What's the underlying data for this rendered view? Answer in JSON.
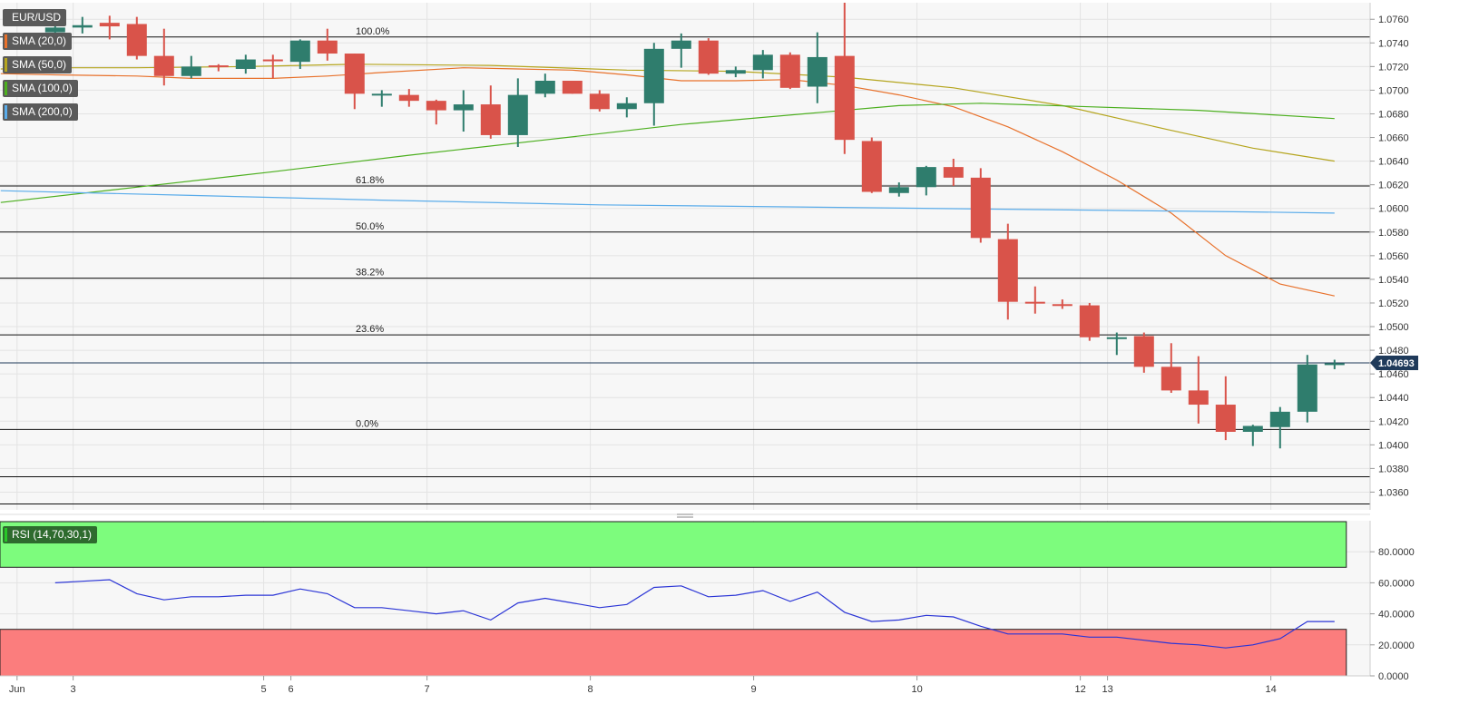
{
  "legend": {
    "symbol": "EUR/USD",
    "indicators": [
      {
        "label": "SMA (20,0)",
        "color": "#e8712b"
      },
      {
        "label": "SMA (50,0)",
        "color": "#b5a51e"
      },
      {
        "label": "SMA (100,0)",
        "color": "#4caf1f"
      },
      {
        "label": "SMA (200,0)",
        "color": "#5aacea"
      }
    ],
    "rsi": {
      "label": "RSI (14,70,30,1)",
      "color": "#27c727"
    }
  },
  "colors": {
    "up": "#2f7d6d",
    "down": "#d9534a",
    "price_line": "#1f3a5a",
    "rsi_line": "#2b35d6",
    "overbought_zone": "#7dfc7d",
    "oversold_zone": "#fb7d7d"
  },
  "chart_data": {
    "type": "candlestick",
    "price_axis": {
      "min": 1.0345,
      "max": 1.0774,
      "ticks": [
        "1.0760",
        "1.0740",
        "1.0720",
        "1.0700",
        "1.0680",
        "1.0660",
        "1.0640",
        "1.0620",
        "1.0600",
        "1.0580",
        "1.0560",
        "1.0540",
        "1.0520",
        "1.0500",
        "1.0480",
        "1.0460",
        "1.0440",
        "1.0420",
        "1.0400",
        "1.0380",
        "1.0360"
      ]
    },
    "current_price": {
      "label": "1.04693",
      "value": 1.04693
    },
    "fibonacci": [
      {
        "label": "100.0%",
        "value": 1.0745
      },
      {
        "label": "61.8%",
        "value": 1.0619
      },
      {
        "label": "50.0%",
        "value": 1.058
      },
      {
        "label": "38.2%",
        "value": 1.0541
      },
      {
        "label": "23.6%",
        "value": 1.0493
      },
      {
        "label": "0.0%",
        "value": 1.0413
      }
    ],
    "extra_levels": [
      1.0373,
      1.035
    ],
    "x_labels": [
      {
        "label": "Jun",
        "index": -1.4
      },
      {
        "label": "3",
        "index": 0.66
      },
      {
        "label": "5",
        "index": 7.66
      },
      {
        "label": "6",
        "index": 8.66
      },
      {
        "label": "7",
        "index": 13.66
      },
      {
        "label": "8",
        "index": 19.66
      },
      {
        "label": "9",
        "index": 25.66
      },
      {
        "label": "10",
        "index": 31.66
      },
      {
        "label": "12",
        "index": 37.66
      },
      {
        "label": "13",
        "index": 38.66
      },
      {
        "label": "14",
        "index": 44.66
      }
    ],
    "candles": [
      {
        "o": 1.0749,
        "h": 1.0757,
        "l": 1.0739,
        "c": 1.0753
      },
      {
        "o": 1.0753,
        "h": 1.0762,
        "l": 1.0748,
        "c": 1.0755
      },
      {
        "o": 1.0757,
        "h": 1.0763,
        "l": 1.0743,
        "c": 1.0754
      },
      {
        "o": 1.0756,
        "h": 1.0762,
        "l": 1.0726,
        "c": 1.0729
      },
      {
        "o": 1.0729,
        "h": 1.0752,
        "l": 1.0704,
        "c": 1.0712
      },
      {
        "o": 1.0712,
        "h": 1.0729,
        "l": 1.071,
        "c": 1.072
      },
      {
        "o": 1.0721,
        "h": 1.0722,
        "l": 1.0716,
        "c": 1.072
      },
      {
        "o": 1.0718,
        "h": 1.073,
        "l": 1.0714,
        "c": 1.0726
      },
      {
        "o": 1.0726,
        "h": 1.073,
        "l": 1.071,
        "c": 1.0725
      },
      {
        "o": 1.0724,
        "h": 1.0743,
        "l": 1.0718,
        "c": 1.0742
      },
      {
        "o": 1.0742,
        "h": 1.0752,
        "l": 1.0725,
        "c": 1.0731
      },
      {
        "o": 1.0731,
        "h": 1.0731,
        "l": 1.0684,
        "c": 1.0697
      },
      {
        "o": 1.0697,
        "h": 1.07,
        "l": 1.0686,
        "c": 1.0697
      },
      {
        "o": 1.0696,
        "h": 1.0701,
        "l": 1.0686,
        "c": 1.0691
      },
      {
        "o": 1.0691,
        "h": 1.0692,
        "l": 1.0671,
        "c": 1.0683
      },
      {
        "o": 1.0683,
        "h": 1.07,
        "l": 1.0665,
        "c": 1.0688
      },
      {
        "o": 1.0688,
        "h": 1.0704,
        "l": 1.0659,
        "c": 1.0662
      },
      {
        "o": 1.0662,
        "h": 1.071,
        "l": 1.0652,
        "c": 1.0696
      },
      {
        "o": 1.0697,
        "h": 1.0714,
        "l": 1.0694,
        "c": 1.0708
      },
      {
        "o": 1.0708,
        "h": 1.0708,
        "l": 1.0697,
        "c": 1.0697
      },
      {
        "o": 1.0697,
        "h": 1.07,
        "l": 1.0682,
        "c": 1.0684
      },
      {
        "o": 1.0684,
        "h": 1.0694,
        "l": 1.0677,
        "c": 1.0689
      },
      {
        "o": 1.0689,
        "h": 1.074,
        "l": 1.067,
        "c": 1.0735
      },
      {
        "o": 1.0735,
        "h": 1.0748,
        "l": 1.0719,
        "c": 1.0742
      },
      {
        "o": 1.0742,
        "h": 1.0744,
        "l": 1.0713,
        "c": 1.0714
      },
      {
        "o": 1.0714,
        "h": 1.072,
        "l": 1.0711,
        "c": 1.0717
      },
      {
        "o": 1.0717,
        "h": 1.0734,
        "l": 1.071,
        "c": 1.073
      },
      {
        "o": 1.073,
        "h": 1.0732,
        "l": 1.0701,
        "c": 1.0702
      },
      {
        "o": 1.0703,
        "h": 1.0749,
        "l": 1.0689,
        "c": 1.0728
      },
      {
        "o": 1.0729,
        "h": 1.0774,
        "l": 1.0646,
        "c": 1.0658
      },
      {
        "o": 1.0657,
        "h": 1.066,
        "l": 1.0613,
        "c": 1.0614
      },
      {
        "o": 1.0613,
        "h": 1.0622,
        "l": 1.061,
        "c": 1.0618
      },
      {
        "o": 1.0618,
        "h": 1.0636,
        "l": 1.0611,
        "c": 1.0635
      },
      {
        "o": 1.0635,
        "h": 1.0642,
        "l": 1.0619,
        "c": 1.0626
      },
      {
        "o": 1.0626,
        "h": 1.0634,
        "l": 1.0571,
        "c": 1.0575
      },
      {
        "o": 1.0574,
        "h": 1.0587,
        "l": 1.0506,
        "c": 1.0521
      },
      {
        "o": 1.0521,
        "h": 1.0534,
        "l": 1.0511,
        "c": 1.052
      },
      {
        "o": 1.0519,
        "h": 1.0523,
        "l": 1.0515,
        "c": 1.0518
      },
      {
        "o": 1.0518,
        "h": 1.052,
        "l": 1.0488,
        "c": 1.0491
      },
      {
        "o": 1.0491,
        "h": 1.0495,
        "l": 1.0476,
        "c": 1.0491
      },
      {
        "o": 1.0492,
        "h": 1.0495,
        "l": 1.0461,
        "c": 1.0466
      },
      {
        "o": 1.0466,
        "h": 1.0486,
        "l": 1.0444,
        "c": 1.0446
      },
      {
        "o": 1.0446,
        "h": 1.0475,
        "l": 1.0418,
        "c": 1.0434
      },
      {
        "o": 1.0434,
        "h": 1.0458,
        "l": 1.0404,
        "c": 1.0411
      },
      {
        "o": 1.0411,
        "h": 1.0417,
        "l": 1.0399,
        "c": 1.0416
      },
      {
        "o": 1.0415,
        "h": 1.0432,
        "l": 1.0397,
        "c": 1.0428
      },
      {
        "o": 1.0428,
        "h": 1.0476,
        "l": 1.0419,
        "c": 1.0468
      },
      {
        "o": 1.0468,
        "h": 1.0472,
        "l": 1.0464,
        "c": 1.0469
      }
    ],
    "sma_series": [
      {
        "label": "SMA (20,0)",
        "points": [
          [
            -2,
            1.0714
          ],
          [
            0,
            1.0713
          ],
          [
            3,
            1.0712
          ],
          [
            5,
            1.071
          ],
          [
            8,
            1.071
          ],
          [
            10,
            1.0712
          ],
          [
            12,
            1.0715
          ],
          [
            15,
            1.0719
          ],
          [
            17,
            1.0718
          ],
          [
            19,
            1.0717
          ],
          [
            21,
            1.0713
          ],
          [
            23,
            1.0708
          ],
          [
            25,
            1.0708
          ],
          [
            27,
            1.0709
          ],
          [
            29,
            1.0704
          ],
          [
            31,
            1.0696
          ],
          [
            33,
            1.0686
          ],
          [
            35,
            1.0669
          ],
          [
            37,
            1.0648
          ],
          [
            39,
            1.0624
          ],
          [
            41,
            1.0596
          ],
          [
            43,
            1.056
          ],
          [
            45,
            1.0536
          ],
          [
            47,
            1.0526
          ]
        ]
      },
      {
        "label": "SMA (50,0)",
        "points": [
          [
            -2,
            1.0718
          ],
          [
            0,
            1.0719
          ],
          [
            3,
            1.0719
          ],
          [
            7,
            1.072
          ],
          [
            11,
            1.0722
          ],
          [
            16,
            1.0721
          ],
          [
            21,
            1.0717
          ],
          [
            25,
            1.0716
          ],
          [
            29,
            1.0711
          ],
          [
            33,
            1.0702
          ],
          [
            37,
            1.0687
          ],
          [
            41,
            1.0666
          ],
          [
            44,
            1.0651
          ],
          [
            47,
            1.064
          ]
        ]
      },
      {
        "label": "SMA (100,0)",
        "points": [
          [
            -2,
            1.0605
          ],
          [
            3,
            1.0618
          ],
          [
            8,
            1.0631
          ],
          [
            13,
            1.0645
          ],
          [
            18,
            1.0658
          ],
          [
            23,
            1.0671
          ],
          [
            28,
            1.0681
          ],
          [
            31,
            1.0687
          ],
          [
            34,
            1.0689
          ],
          [
            38,
            1.0686
          ],
          [
            42,
            1.0683
          ],
          [
            47,
            1.0676
          ]
        ]
      },
      {
        "label": "SMA (200,0)",
        "points": [
          [
            -2,
            1.0615
          ],
          [
            5,
            1.0611
          ],
          [
            12,
            1.0607
          ],
          [
            20,
            1.0603
          ],
          [
            28,
            1.0601
          ],
          [
            36,
            1.0599
          ],
          [
            44,
            1.0597
          ],
          [
            47,
            1.0596
          ]
        ]
      }
    ],
    "rsi": {
      "axis": {
        "min": 0,
        "max": 100,
        "ticks": [
          "80.0000",
          "60.0000",
          "40.0000",
          "20.0000",
          "0.0000"
        ]
      },
      "overbought": 70,
      "oversold": 30,
      "values": [
        60,
        61,
        62,
        53,
        49,
        51,
        51,
        52,
        52,
        56,
        53,
        44,
        44,
        42,
        40,
        42,
        36,
        47,
        50,
        47,
        44,
        46,
        57,
        58,
        51,
        52,
        55,
        48,
        54,
        41,
        35,
        36,
        39,
        38,
        32,
        27,
        27,
        27,
        25,
        25,
        23,
        21,
        20,
        18,
        20,
        24,
        35,
        35
      ]
    }
  }
}
